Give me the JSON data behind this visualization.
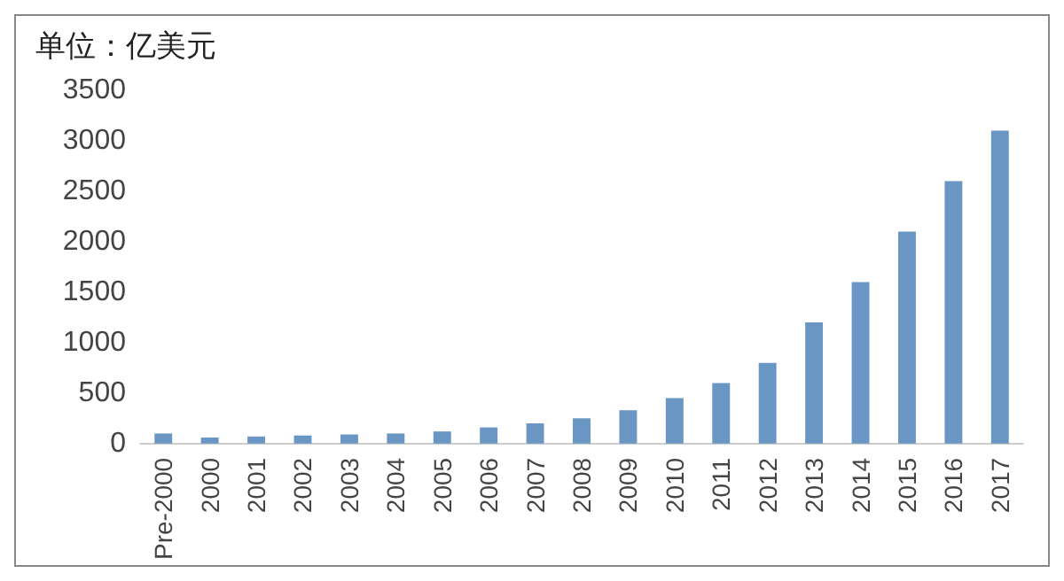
{
  "chart_data": {
    "type": "bar",
    "title": "单位：亿美元",
    "categories": [
      "Pre-2000",
      "2000",
      "2001",
      "2002",
      "2003",
      "2004",
      "2005",
      "2006",
      "2007",
      "2008",
      "2009",
      "2010",
      "2011",
      "2012",
      "2013",
      "2014",
      "2015",
      "2016",
      "2017"
    ],
    "values": [
      100,
      60,
      70,
      80,
      90,
      100,
      120,
      160,
      200,
      250,
      330,
      450,
      600,
      800,
      1200,
      1600,
      2100,
      2600,
      3100
    ],
    "color": "#6a96c3",
    "ylim": [
      0,
      3500
    ],
    "yticks": [
      0,
      500,
      1000,
      1500,
      2000,
      2500,
      3000,
      3500
    ],
    "grid": false
  }
}
